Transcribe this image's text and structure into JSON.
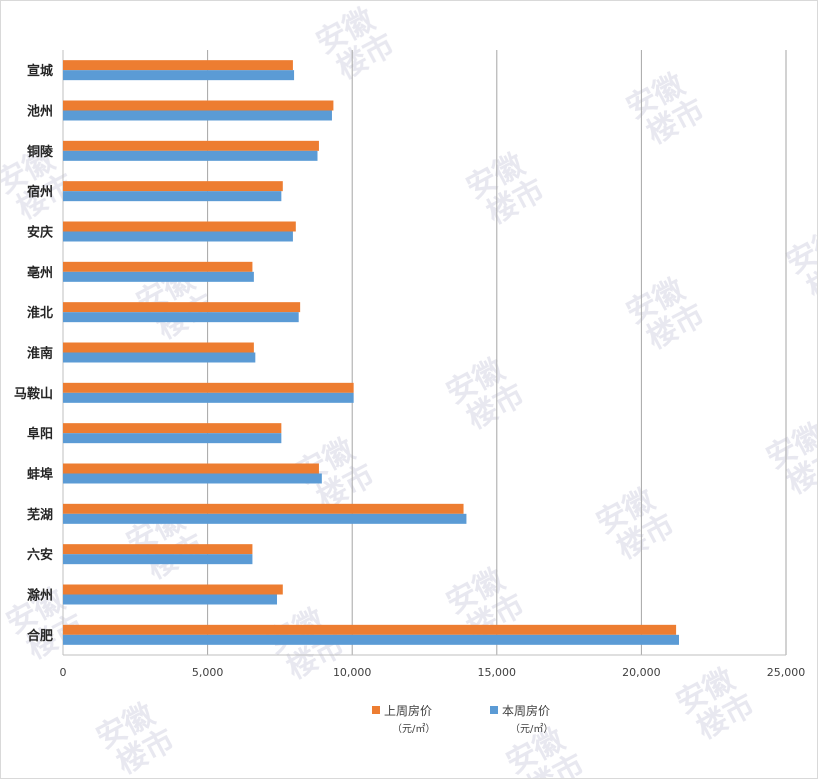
{
  "chart_data": {
    "type": "bar",
    "orientation": "horizontal",
    "categories": [
      "宣城",
      "池州",
      "铜陵",
      "宿州",
      "安庆",
      "亳州",
      "淮北",
      "淮南",
      "马鞍山",
      "阜阳",
      "蚌埠",
      "芜湖",
      "六安",
      "滁州",
      "合肥"
    ],
    "series": [
      {
        "name": "上周房价\n（元/㎡）",
        "color": "#ed7d31",
        "values": [
          7950,
          9350,
          8850,
          7600,
          8050,
          6550,
          8200,
          6600,
          10050,
          7550,
          8850,
          13850,
          6550,
          7600,
          21200
        ]
      },
      {
        "name": "本周房价\n（元/㎡）",
        "color": "#5b9bd5",
        "values": [
          7990,
          9300,
          8800,
          7550,
          7950,
          6600,
          8150,
          6650,
          10050,
          7550,
          8950,
          13950,
          6550,
          7400,
          21300
        ]
      }
    ],
    "x_ticks": [
      "0",
      "5,000",
      "10,000",
      "15,000",
      "20,000",
      "25,000"
    ],
    "xlim": [
      0,
      25000
    ],
    "grid": "vertical",
    "legend_position": "bottom",
    "watermark": "安徽楼市"
  }
}
